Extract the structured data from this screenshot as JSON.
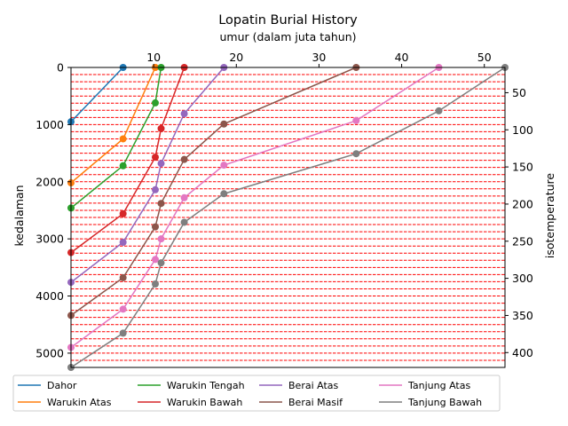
{
  "chart_data": {
    "type": "line",
    "title": "Lopatin Burial History",
    "xlabel": "umur (dalam juta tahun)",
    "ylabel": "kedalaman",
    "y2label": "isotemperature",
    "xlim": [
      0,
      52.5
    ],
    "ylim": [
      5250,
      0
    ],
    "y2lim": [
      420,
      16
    ],
    "x_ticks": [
      10,
      20,
      30,
      40,
      50
    ],
    "y_ticks": [
      0,
      1000,
      2000,
      3000,
      4000,
      5000
    ],
    "y2_ticks": [
      50,
      100,
      150,
      200,
      250,
      300,
      350,
      400
    ],
    "isotherm_depths": [
      125,
      250,
      375,
      500,
      625,
      750,
      875,
      1000,
      1125,
      1250,
      1375,
      1500,
      1625,
      1750,
      1875,
      2000,
      2125,
      2250,
      2375,
      2500,
      2625,
      2750,
      2875,
      3000,
      3125,
      3250,
      3375,
      3500,
      3625,
      3750,
      3875,
      4000,
      4125,
      4250,
      4375,
      4500,
      4625,
      4750,
      4875,
      5000,
      5125,
      5250
    ],
    "isotherm_color": "#ff0000",
    "legend_position": "bottom",
    "series": [
      {
        "name": "Dahor",
        "color": "#1f77b4",
        "points": [
          [
            6.3,
            0
          ],
          [
            0,
            950
          ]
        ]
      },
      {
        "name": "Warukin Atas",
        "color": "#ff7f0e",
        "points": [
          [
            10.2,
            0
          ],
          [
            6.3,
            1250
          ],
          [
            0,
            2020
          ]
        ]
      },
      {
        "name": "Warukin Tengah",
        "color": "#2ca02c",
        "points": [
          [
            10.9,
            0
          ],
          [
            10.2,
            620
          ],
          [
            6.3,
            1720
          ],
          [
            0,
            2460
          ]
        ]
      },
      {
        "name": "Warukin Bawah",
        "color": "#d62728",
        "points": [
          [
            13.7,
            0
          ],
          [
            10.9,
            1070
          ],
          [
            10.2,
            1570
          ],
          [
            6.3,
            2560
          ],
          [
            0,
            3240
          ]
        ]
      },
      {
        "name": "Berai Atas",
        "color": "#9467bd",
        "points": [
          [
            18.5,
            0
          ],
          [
            13.7,
            810
          ],
          [
            10.9,
            1680
          ],
          [
            10.2,
            2140
          ],
          [
            6.3,
            3060
          ],
          [
            0,
            3760
          ]
        ]
      },
      {
        "name": "Berai Masif",
        "color": "#8c564b",
        "points": [
          [
            34.5,
            0
          ],
          [
            18.5,
            990
          ],
          [
            13.7,
            1610
          ],
          [
            10.9,
            2380
          ],
          [
            10.2,
            2790
          ],
          [
            6.3,
            3680
          ],
          [
            0,
            4340
          ]
        ]
      },
      {
        "name": "Tanjung Atas",
        "color": "#e377c2",
        "points": [
          [
            44.5,
            0
          ],
          [
            34.5,
            930
          ],
          [
            18.5,
            1710
          ],
          [
            13.7,
            2280
          ],
          [
            10.9,
            3000
          ],
          [
            10.2,
            3360
          ],
          [
            6.3,
            4230
          ],
          [
            0,
            4900
          ]
        ]
      },
      {
        "name": "Tanjung Bawah",
        "color": "#7f7f7f",
        "points": [
          [
            52.5,
            0
          ],
          [
            44.5,
            760
          ],
          [
            34.5,
            1510
          ],
          [
            18.5,
            2210
          ],
          [
            13.7,
            2710
          ],
          [
            10.9,
            3420
          ],
          [
            10.2,
            3790
          ],
          [
            6.3,
            4650
          ],
          [
            0,
            5250
          ]
        ]
      }
    ]
  }
}
